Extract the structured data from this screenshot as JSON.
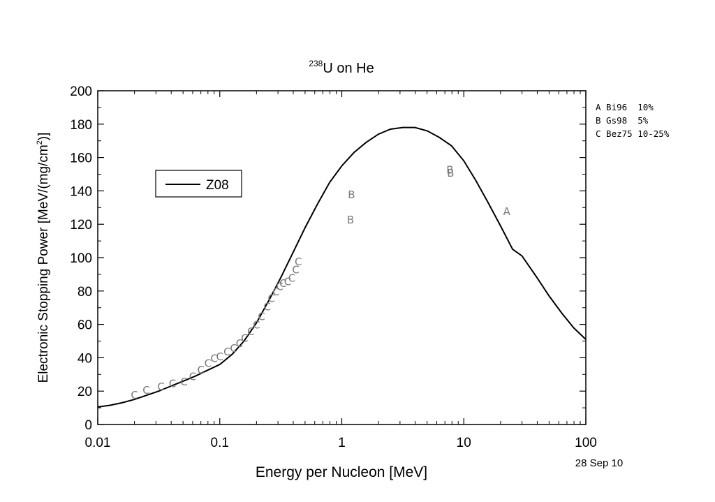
{
  "chart_data": {
    "type": "line",
    "title_sup": "238",
    "title_main": "U on He",
    "xlabel": "Energy per Nucleon [MeV]",
    "ylabel_main": "Electronic Stopping Power [MeV/(mg/cm",
    "ylabel_sup": "2",
    "ylabel_end": ")]",
    "xscale": "log",
    "xlim": [
      0.01,
      100
    ],
    "ylim": [
      0,
      200
    ],
    "x_ticks": [
      {
        "value": 0.01,
        "label": "0.01"
      },
      {
        "value": 0.1,
        "label": "0.1"
      },
      {
        "value": 1,
        "label": "1"
      },
      {
        "value": 10,
        "label": "10"
      },
      {
        "value": 100,
        "label": "100"
      }
    ],
    "y_ticks": [
      {
        "value": 0,
        "label": "0"
      },
      {
        "value": 20,
        "label": "20"
      },
      {
        "value": 40,
        "label": "40"
      },
      {
        "value": 60,
        "label": "60"
      },
      {
        "value": 80,
        "label": "80"
      },
      {
        "value": 100,
        "label": "100"
      },
      {
        "value": 120,
        "label": "120"
      },
      {
        "value": 140,
        "label": "140"
      },
      {
        "value": 160,
        "label": "160"
      },
      {
        "value": 180,
        "label": "180"
      },
      {
        "value": 200,
        "label": "200"
      }
    ],
    "legend_label": "Z08",
    "legend_position": "upper-left",
    "series": [
      {
        "name": "Z08",
        "color": "#000000",
        "x": [
          0.01,
          0.0126,
          0.0158,
          0.02,
          0.0251,
          0.0316,
          0.0398,
          0.0501,
          0.0631,
          0.0794,
          0.1,
          0.126,
          0.158,
          0.2,
          0.251,
          0.316,
          0.398,
          0.501,
          0.631,
          0.794,
          1.0,
          1.26,
          1.58,
          2.0,
          2.51,
          3.16,
          3.98,
          5.01,
          6.31,
          7.94,
          10.0,
          12.6,
          15.8,
          20.0,
          25.1,
          30.0,
          39.8,
          50.1,
          63.1,
          79.4,
          100
        ],
        "y": [
          10.5,
          11.5,
          13,
          15,
          17.5,
          20,
          23,
          26,
          29,
          32.5,
          36,
          42,
          50,
          61,
          74,
          88,
          103,
          118,
          132,
          145,
          155,
          163,
          169,
          174,
          177,
          178,
          178,
          176,
          172,
          167,
          158,
          146,
          133,
          119,
          105,
          101,
          88,
          77,
          67,
          58,
          51
        ]
      }
    ],
    "data_markers": [
      {
        "symbol": "A",
        "x": 22.5,
        "y": 128
      },
      {
        "symbol": "B",
        "x": 1.2,
        "y": 138
      },
      {
        "symbol": "B",
        "x": 1.18,
        "y": 123
      },
      {
        "symbol": "B",
        "x": 7.7,
        "y": 153
      },
      {
        "symbol": "B",
        "x": 7.8,
        "y": 151
      },
      {
        "symbol": "C",
        "x": 0.02,
        "y": 18
      },
      {
        "symbol": "C",
        "x": 0.025,
        "y": 21
      },
      {
        "symbol": "C",
        "x": 0.033,
        "y": 23
      },
      {
        "symbol": "C",
        "x": 0.041,
        "y": 25
      },
      {
        "symbol": "C",
        "x": 0.051,
        "y": 26
      },
      {
        "symbol": "C",
        "x": 0.06,
        "y": 29
      },
      {
        "symbol": "C",
        "x": 0.07,
        "y": 33
      },
      {
        "symbol": "C",
        "x": 0.08,
        "y": 37
      },
      {
        "symbol": "C",
        "x": 0.09,
        "y": 40
      },
      {
        "symbol": "C",
        "x": 0.1,
        "y": 41
      },
      {
        "symbol": "C",
        "x": 0.115,
        "y": 44
      },
      {
        "symbol": "C",
        "x": 0.13,
        "y": 46
      },
      {
        "symbol": "C",
        "x": 0.145,
        "y": 49
      },
      {
        "symbol": "C",
        "x": 0.16,
        "y": 52
      },
      {
        "symbol": "C",
        "x": 0.18,
        "y": 56
      },
      {
        "symbol": "C",
        "x": 0.2,
        "y": 60
      },
      {
        "symbol": "C",
        "x": 0.22,
        "y": 65
      },
      {
        "symbol": "C",
        "x": 0.245,
        "y": 71
      },
      {
        "symbol": "C",
        "x": 0.265,
        "y": 76
      },
      {
        "symbol": "C",
        "x": 0.29,
        "y": 80
      },
      {
        "symbol": "C",
        "x": 0.31,
        "y": 83
      },
      {
        "symbol": "C",
        "x": 0.33,
        "y": 85
      },
      {
        "symbol": "C",
        "x": 0.36,
        "y": 86
      },
      {
        "symbol": "C",
        "x": 0.39,
        "y": 88
      },
      {
        "symbol": "C",
        "x": 0.42,
        "y": 93
      },
      {
        "symbol": "C",
        "x": 0.44,
        "y": 98
      }
    ],
    "marker_color": "#7a7a7a"
  },
  "source_notes": [
    "A Bi96  10%",
    "B Gs98  5%",
    "C Bez75 10-25%"
  ],
  "date_stamp": "28 Sep 10"
}
